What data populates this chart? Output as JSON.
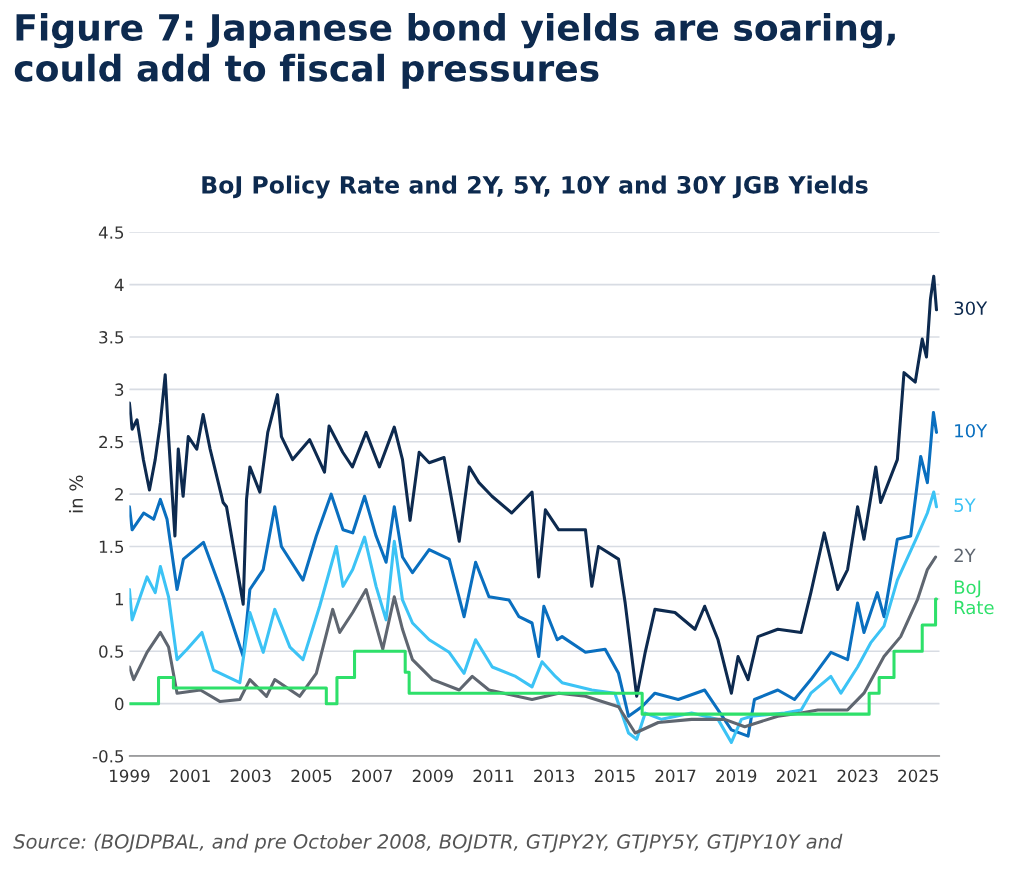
{
  "chart_data": {
    "type": "line",
    "title": "Figure 7: Japanese bond yields are soaring, could add to fiscal pressures",
    "subtitle": "BoJ Policy Rate and 2Y, 5Y, 10Y and 30Y JGB Yields",
    "ylabel": "in %",
    "annotations": [
      "Source: (BOJDPBAL, and pre October 2008, BOJDTR, GTJPY2Y, GTJPY5Y, GTJPY10Y and"
    ],
    "xlim": [
      1999,
      2025.7
    ],
    "xticks": [
      1999,
      2001,
      2003,
      2005,
      2007,
      2009,
      2011,
      2013,
      2015,
      2017,
      2019,
      2021,
      2023,
      2025
    ],
    "ylim": [
      -0.5,
      4.5
    ],
    "yticks": [
      -0.5,
      0,
      0.5,
      1,
      1.5,
      2,
      2.5,
      3,
      3.5,
      4,
      4.5
    ],
    "grid": "y",
    "series": [
      {
        "name": "30Y",
        "color": "#0d2a4f",
        "x": [
          1999.0,
          1999.09,
          1999.25,
          1999.46,
          1999.66,
          1999.85,
          2000.02,
          2000.18,
          2000.29,
          2000.5,
          2000.61,
          2000.77,
          2000.94,
          2001.22,
          2001.43,
          2001.66,
          2002.09,
          2002.2,
          2002.75,
          2002.86,
          2002.97,
          2003.3,
          2003.56,
          2003.88,
          2004.01,
          2004.38,
          2004.94,
          2005.43,
          2005.58,
          2006.03,
          2006.35,
          2006.8,
          2007.24,
          2007.73,
          2008.0,
          2008.25,
          2008.55,
          2008.88,
          2009.37,
          2009.87,
          2010.2,
          2010.52,
          2010.95,
          2011.6,
          2012.27,
          2012.49,
          2012.71,
          2013.15,
          2014.03,
          2014.24,
          2014.46,
          2015.12,
          2015.34,
          2015.72,
          2016.0,
          2016.32,
          2016.98,
          2017.64,
          2017.96,
          2018.4,
          2018.84,
          2019.06,
          2019.39,
          2019.72,
          2020.37,
          2021.14,
          2021.46,
          2021.9,
          2022.34,
          2022.67,
          2023.0,
          2023.21,
          2023.6,
          2023.76,
          2024.31,
          2024.53,
          2024.9,
          2025.13,
          2025.27,
          2025.4,
          2025.51,
          2025.6
        ],
        "values": [
          2.87,
          2.62,
          2.71,
          2.33,
          2.04,
          2.33,
          2.68,
          3.14,
          2.55,
          1.6,
          2.43,
          1.98,
          2.55,
          2.43,
          2.76,
          2.43,
          1.92,
          1.88,
          0.95,
          1.95,
          2.26,
          2.02,
          2.59,
          2.95,
          2.55,
          2.33,
          2.52,
          2.21,
          2.65,
          2.4,
          2.26,
          2.59,
          2.26,
          2.64,
          2.33,
          1.75,
          2.4,
          2.3,
          2.35,
          1.55,
          2.26,
          2.11,
          1.98,
          1.82,
          2.02,
          1.21,
          1.85,
          1.66,
          1.66,
          1.12,
          1.5,
          1.38,
          0.96,
          0.07,
          0.49,
          0.9,
          0.87,
          0.71,
          0.93,
          0.61,
          0.1,
          0.45,
          0.23,
          0.64,
          0.71,
          0.68,
          1.06,
          1.63,
          1.09,
          1.28,
          1.88,
          1.57,
          2.26,
          1.92,
          2.33,
          3.16,
          3.07,
          3.48,
          3.31,
          3.86,
          4.08,
          3.76
        ]
      },
      {
        "name": "10Y",
        "color": "#0a6fbf",
        "x": [
          1999.0,
          1999.09,
          1999.47,
          1999.8,
          2000.02,
          2000.24,
          2000.57,
          2000.78,
          2001.44,
          2002.1,
          2002.75,
          2002.97,
          2003.41,
          2003.79,
          2004.01,
          2004.72,
          2005.16,
          2005.65,
          2006.04,
          2006.36,
          2006.75,
          2007.13,
          2007.46,
          2007.73,
          2008.0,
          2008.33,
          2008.88,
          2009.54,
          2010.03,
          2010.41,
          2010.85,
          2011.51,
          2011.84,
          2012.27,
          2012.49,
          2012.66,
          2013.1,
          2013.26,
          2014.03,
          2014.68,
          2015.12,
          2015.45,
          2015.89,
          2016.32,
          2017.09,
          2017.96,
          2018.4,
          2018.84,
          2019.39,
          2019.6,
          2020.37,
          2020.92,
          2021.46,
          2022.12,
          2022.67,
          2023.0,
          2023.21,
          2023.65,
          2023.87,
          2024.31,
          2024.75,
          2025.08,
          2025.3,
          2025.5,
          2025.6
        ],
        "values": [
          1.88,
          1.66,
          1.82,
          1.76,
          1.95,
          1.76,
          1.09,
          1.38,
          1.54,
          1.02,
          0.45,
          1.09,
          1.28,
          1.88,
          1.5,
          1.18,
          1.6,
          2.0,
          1.66,
          1.63,
          1.98,
          1.6,
          1.35,
          1.88,
          1.4,
          1.25,
          1.47,
          1.38,
          0.83,
          1.35,
          1.02,
          0.99,
          0.83,
          0.77,
          0.45,
          0.93,
          0.61,
          0.64,
          0.49,
          0.52,
          0.29,
          -0.12,
          -0.03,
          0.1,
          0.04,
          0.13,
          -0.06,
          -0.25,
          -0.31,
          0.04,
          0.13,
          0.04,
          0.23,
          0.49,
          0.42,
          0.96,
          0.68,
          1.06,
          0.83,
          1.57,
          1.6,
          2.36,
          2.11,
          2.78,
          2.59
        ]
      },
      {
        "name": "5Y",
        "color": "#3cc3f5",
        "x": [
          1999.0,
          1999.09,
          1999.58,
          1999.85,
          2000.02,
          2000.29,
          2000.57,
          2000.9,
          2001.39,
          2001.77,
          2002.64,
          2002.97,
          2003.41,
          2003.79,
          2004.29,
          2004.72,
          2005.27,
          2005.82,
          2006.04,
          2006.36,
          2006.75,
          2007.13,
          2007.46,
          2007.73,
          2008.0,
          2008.33,
          2008.88,
          2009.54,
          2010.03,
          2010.41,
          2010.96,
          2011.73,
          2012.27,
          2012.6,
          2013.04,
          2013.26,
          2014.24,
          2015.0,
          2015.45,
          2015.72,
          2016.0,
          2016.54,
          2017.53,
          2018.4,
          2018.84,
          2019.17,
          2019.5,
          2020.6,
          2021.14,
          2021.46,
          2022.12,
          2022.45,
          2023.0,
          2023.43,
          2023.87,
          2024.31,
          2024.97,
          2025.3,
          2025.51,
          2025.6
        ],
        "values": [
          1.09,
          0.8,
          1.21,
          1.06,
          1.31,
          1.02,
          0.42,
          0.52,
          0.68,
          0.32,
          0.2,
          0.87,
          0.49,
          0.9,
          0.54,
          0.42,
          0.93,
          1.5,
          1.12,
          1.28,
          1.59,
          1.12,
          0.8,
          1.55,
          0.99,
          0.77,
          0.61,
          0.49,
          0.29,
          0.61,
          0.35,
          0.26,
          0.16,
          0.4,
          0.26,
          0.2,
          0.13,
          0.1,
          -0.28,
          -0.34,
          -0.09,
          -0.15,
          -0.09,
          -0.15,
          -0.37,
          -0.15,
          -0.12,
          -0.09,
          -0.06,
          0.1,
          0.26,
          0.1,
          0.35,
          0.58,
          0.74,
          1.18,
          1.6,
          1.82,
          2.02,
          1.88
        ]
      },
      {
        "name": "2Y",
        "color": "#5f6670",
        "x": [
          1999.0,
          1999.14,
          1999.58,
          2000.02,
          2000.29,
          2000.57,
          2001.34,
          2001.99,
          2002.64,
          2002.97,
          2003.52,
          2003.79,
          2004.61,
          2005.16,
          2005.7,
          2005.93,
          2006.36,
          2006.8,
          2007.35,
          2007.73,
          2008.0,
          2008.33,
          2008.99,
          2009.87,
          2010.3,
          2010.85,
          2012.27,
          2013.15,
          2014.03,
          2015.12,
          2015.67,
          2016.43,
          2017.53,
          2018.62,
          2019.28,
          2020.37,
          2021.14,
          2021.69,
          2022.67,
          2023.21,
          2023.87,
          2024.42,
          2024.97,
          2025.3,
          2025.57
        ],
        "values": [
          0.35,
          0.23,
          0.49,
          0.68,
          0.54,
          0.1,
          0.13,
          0.02,
          0.04,
          0.23,
          0.07,
          0.23,
          0.07,
          0.29,
          0.9,
          0.68,
          0.87,
          1.09,
          0.52,
          1.02,
          0.71,
          0.42,
          0.23,
          0.13,
          0.26,
          0.13,
          0.04,
          0.1,
          0.07,
          -0.03,
          -0.28,
          -0.18,
          -0.15,
          -0.15,
          -0.22,
          -0.12,
          -0.09,
          -0.06,
          -0.06,
          0.1,
          0.45,
          0.64,
          0.99,
          1.28,
          1.4
        ]
      },
      {
        "name": "BoJ Rate",
        "type": "step",
        "color": "#2ee06a",
        "x": [
          1999.0,
          1999.96,
          2000.45,
          2005.49,
          2005.84,
          2006.42,
          2008.09,
          2008.22,
          2015.9,
          2023.38,
          2023.71,
          2024.2,
          2025.13,
          2025.57,
          2025.6
        ],
        "values": [
          0,
          0.25,
          0.15,
          0,
          0.25,
          0.5,
          0.3,
          0.1,
          -0.1,
          0.1,
          0.25,
          0.5,
          0.75,
          1.0,
          1.0
        ]
      }
    ]
  }
}
